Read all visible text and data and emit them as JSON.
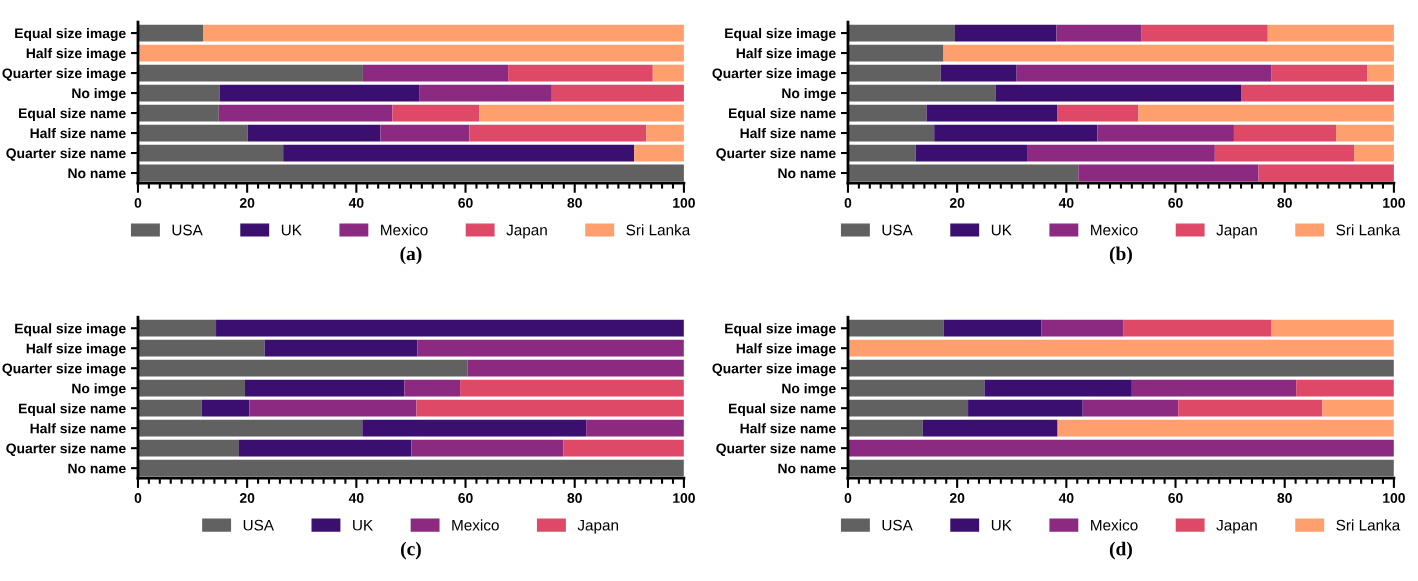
{
  "chart_data": [
    {
      "type": "bar",
      "orientation": "horizontal",
      "stacked": true,
      "title": "(a)",
      "legend": "bottom",
      "grid": false,
      "xlim": [
        0,
        100
      ],
      "xticks": [
        0,
        20,
        40,
        60,
        80,
        100
      ],
      "categories": [
        "Equal size image",
        "Half size image",
        "Quarter size image",
        "No imge",
        "Equal size name",
        "Half size name",
        "Quarter size name",
        "No name"
      ],
      "series": [
        {
          "name": "USA",
          "color": "#616161",
          "values": [
            12.0,
            0,
            41.2,
            15.0,
            14.8,
            20.1,
            26.6,
            100
          ]
        },
        {
          "name": "UK",
          "color": "#3b0f70",
          "values": [
            0,
            0,
            0,
            36.5,
            0,
            24.3,
            64.3,
            0
          ]
        },
        {
          "name": "Mexico",
          "color": "#8c2981",
          "values": [
            0,
            0,
            26.6,
            24.3,
            31.8,
            16.3,
            0,
            0
          ]
        },
        {
          "name": "Japan",
          "color": "#de4968",
          "values": [
            0,
            0,
            26.5,
            24.2,
            15.9,
            32.4,
            0,
            0
          ]
        },
        {
          "name": "Sri Lanka",
          "color": "#fe9f6d",
          "values": [
            88.0,
            100,
            5.7,
            0,
            37.5,
            6.9,
            9.1,
            0
          ]
        }
      ]
    },
    {
      "type": "bar",
      "orientation": "horizontal",
      "stacked": true,
      "title": "(b)",
      "legend": "bottom",
      "grid": false,
      "xlim": [
        0,
        100
      ],
      "xticks": [
        0,
        20,
        40,
        60,
        80,
        100
      ],
      "categories": [
        "Equal size image",
        "Half size image",
        "Quarter size image",
        "No imge",
        "Equal size name",
        "Half size name",
        "Quarter size name",
        "No name"
      ],
      "series": [
        {
          "name": "USA",
          "color": "#616161",
          "values": [
            19.6,
            17.5,
            17.0,
            27.1,
            14.4,
            15.8,
            12.4,
            42.2
          ]
        },
        {
          "name": "UK",
          "color": "#3b0f70",
          "values": [
            18.6,
            0,
            13.9,
            44.9,
            23.9,
            29.9,
            20.4,
            0
          ]
        },
        {
          "name": "Mexico",
          "color": "#8c2981",
          "values": [
            15.6,
            0,
            46.7,
            0,
            0,
            25.0,
            34.4,
            33.0
          ]
        },
        {
          "name": "Japan",
          "color": "#de4968",
          "values": [
            23.1,
            0,
            17.5,
            28.0,
            14.9,
            18.7,
            25.5,
            24.8
          ]
        },
        {
          "name": "Sri Lanka",
          "color": "#fe9f6d",
          "values": [
            23.1,
            82.5,
            4.9,
            0,
            46.8,
            10.6,
            7.3,
            0
          ]
        }
      ]
    },
    {
      "type": "bar",
      "orientation": "horizontal",
      "stacked": true,
      "title": "(c)",
      "legend": "bottom",
      "grid": false,
      "xlim": [
        0,
        100
      ],
      "xticks": [
        0,
        20,
        40,
        60,
        80,
        100
      ],
      "categories": [
        "Equal size image",
        "Half size image",
        "Quarter size image",
        "No imge",
        "Equal size name",
        "Half size name",
        "Quarter size name",
        "No name"
      ],
      "series": [
        {
          "name": "USA",
          "color": "#616161",
          "values": [
            14.3,
            23.2,
            60.4,
            19.6,
            11.7,
            41.1,
            18.5,
            100
          ]
        },
        {
          "name": "UK",
          "color": "#3b0f70",
          "values": [
            85.7,
            28.0,
            0,
            29.2,
            8.7,
            41.0,
            31.6,
            0
          ]
        },
        {
          "name": "Mexico",
          "color": "#8c2981",
          "values": [
            0,
            48.8,
            39.6,
            10.2,
            30.6,
            17.9,
            27.8,
            0
          ]
        },
        {
          "name": "Japan",
          "color": "#de4968",
          "values": [
            0,
            0,
            0,
            41.0,
            49.0,
            0,
            22.1,
            0
          ]
        }
      ]
    },
    {
      "type": "bar",
      "orientation": "horizontal",
      "stacked": true,
      "title": "(d)",
      "legend": "bottom",
      "grid": false,
      "xlim": [
        0,
        100
      ],
      "xticks": [
        0,
        20,
        40,
        60,
        80,
        100
      ],
      "categories": [
        "Equal size image",
        "Half size image",
        "Quarter size image",
        "No imge",
        "Equal size name",
        "Half size name",
        "Quarter size name",
        "No name"
      ],
      "series": [
        {
          "name": "USA",
          "color": "#616161",
          "values": [
            17.5,
            0,
            100,
            25.0,
            22.0,
            13.7,
            0,
            100
          ]
        },
        {
          "name": "UK",
          "color": "#3b0f70",
          "values": [
            17.9,
            0,
            0,
            27.0,
            21.0,
            24.7,
            0,
            0
          ]
        },
        {
          "name": "Mexico",
          "color": "#8c2981",
          "values": [
            15.1,
            0,
            0,
            30.1,
            17.5,
            0,
            100,
            0
          ]
        },
        {
          "name": "Japan",
          "color": "#de4968",
          "values": [
            27.1,
            0,
            0,
            17.9,
            26.4,
            0,
            0,
            0
          ]
        },
        {
          "name": "Sri Lanka",
          "color": "#fe9f6d",
          "values": [
            22.4,
            100,
            0,
            0,
            13.1,
            61.6,
            0,
            0
          ]
        }
      ]
    }
  ]
}
